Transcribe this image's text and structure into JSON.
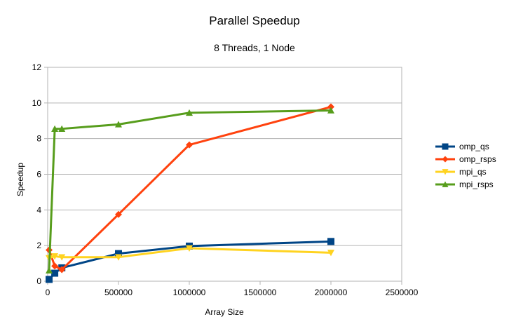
{
  "chart_data": {
    "type": "line",
    "title": "Parallel Speedup",
    "subtitle": "8 Threads, 1 Node",
    "xlabel": "Array Size",
    "ylabel": "Speedup",
    "xlim": [
      0,
      2500000
    ],
    "ylim": [
      0,
      12
    ],
    "xticks": [
      0,
      500000,
      1000000,
      1500000,
      2000000,
      2500000
    ],
    "xtick_labels": [
      "0",
      "500000",
      "1000000",
      "1500000",
      "2000000",
      "2500000"
    ],
    "yticks": [
      0,
      2,
      4,
      6,
      8,
      10,
      12
    ],
    "ytick_labels": [
      "0",
      "2",
      "4",
      "6",
      "8",
      "10",
      "12"
    ],
    "grid": "horizontal",
    "legend_position": "right",
    "series": [
      {
        "name": "omp_qs",
        "color": "#004586",
        "marker": "square",
        "x": [
          10000,
          50000,
          100000,
          500000,
          1000000,
          2000000
        ],
        "y": [
          0.1,
          0.45,
          0.75,
          1.55,
          1.97,
          2.23
        ]
      },
      {
        "name": "omp_rsps",
        "color": "#ff420e",
        "marker": "diamond",
        "x": [
          10000,
          50000,
          100000,
          500000,
          1000000,
          2000000
        ],
        "y": [
          1.75,
          0.85,
          0.65,
          3.75,
          7.65,
          9.78
        ]
      },
      {
        "name": "mpi_qs",
        "color": "#ffd320",
        "marker": "triangle-down",
        "x": [
          10000,
          50000,
          100000,
          500000,
          1000000,
          2000000
        ],
        "y": [
          1.3,
          1.4,
          1.35,
          1.35,
          1.85,
          1.6
        ]
      },
      {
        "name": "mpi_rsps",
        "color": "#579d1c",
        "marker": "triangle-up",
        "x": [
          10000,
          50000,
          100000,
          500000,
          1000000,
          2000000
        ],
        "y": [
          0.6,
          8.55,
          8.55,
          8.8,
          9.45,
          9.58
        ]
      }
    ]
  }
}
